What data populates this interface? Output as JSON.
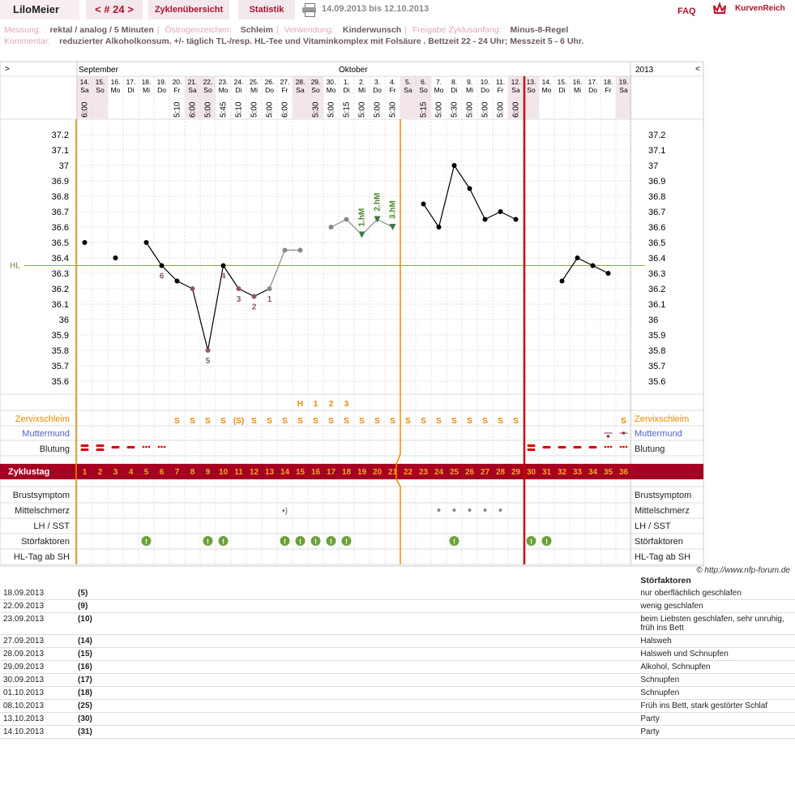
{
  "header": {
    "user": "LiloMeier",
    "cycle_nav": "< # 24 >",
    "tab_overview": "Zyklenübersicht",
    "tab_stats": "Statistik",
    "date_range": "14.09.2013 bis 12.10.2013",
    "faq": "FAQ",
    "brand": "KurvenReich"
  },
  "info": {
    "messung_label": "Messung:",
    "messung": "rektal / analog / 5 Minuten",
    "oestrogen_label": "Östrogenzeichen:",
    "oestrogen": "Schleim",
    "verwendung_label": "Verwendung:",
    "verwendung": "Kinderwunsch",
    "freigabe_label": "Freigabe Zyklusanfang:",
    "freigabe": "Minus-8-Regel",
    "kommentar_label": "Kommentar:",
    "kommentar": "reduzierter Alkoholkonsum. +/- täglich TL-/resp. HL-Tee und Vitaminkomplex mit Folsäure . Bettzeit 22 - 24 Uhr; Messzeit 5 - 6 Uhr."
  },
  "chart_data": {
    "type": "line",
    "year": "2013",
    "nav_left": ">",
    "nav_right": "<",
    "months": [
      "September",
      "Oktober"
    ],
    "dates": [
      "14.",
      "15.",
      "16.",
      "17.",
      "18.",
      "19.",
      "20.",
      "21.",
      "22.",
      "23.",
      "24.",
      "25.",
      "26.",
      "27.",
      "28.",
      "29.",
      "30.",
      "1.",
      "2.",
      "3.",
      "4.",
      "5.",
      "6.",
      "7.",
      "8.",
      "9.",
      "10.",
      "11.",
      "12.",
      "13.",
      "14.",
      "15.",
      "16.",
      "17.",
      "18.",
      "19."
    ],
    "weekdays": [
      "Sa",
      "So",
      "Mo",
      "Di",
      "Mi",
      "Do",
      "Fr",
      "Sa",
      "So",
      "Mo",
      "Di",
      "Mi",
      "Do",
      "Fr",
      "Sa",
      "So",
      "Mo",
      "Di",
      "Mi",
      "Do",
      "Fr",
      "Sa",
      "So",
      "Mo",
      "Di",
      "Mi",
      "Do",
      "Fr",
      "Sa",
      "So",
      "Mo",
      "Di",
      "Mi",
      "Do",
      "Fr",
      "Sa"
    ],
    "times": [
      "6:00",
      "",
      "",
      "",
      "",
      "",
      "5:10",
      "6:00",
      "5:00",
      "5:45",
      "5:10",
      "5:00",
      "5:00",
      "6:00",
      "",
      "5:30",
      "5:00",
      "5:15",
      "5:00",
      "5:00",
      "5:30",
      "",
      "5:15",
      "5:00",
      "5:30",
      "5:00",
      "5:00",
      "5:00",
      "6:00",
      "",
      "",
      "",
      "",
      "",
      "",
      ""
    ],
    "cycle_days": [
      "1",
      "2",
      "3",
      "4",
      "5",
      "6",
      "7",
      "8",
      "9",
      "10",
      "11",
      "12",
      "13",
      "14",
      "15",
      "16",
      "17",
      "18",
      "19",
      "20",
      "21",
      "22",
      "23",
      "24",
      "25",
      "26",
      "27",
      "28",
      "29",
      "30",
      "31",
      "32",
      "33",
      "34",
      "35",
      "36"
    ],
    "y_ticks": [
      "37.2",
      "37.1",
      "37",
      "36.9",
      "36.8",
      "36.7",
      "36.6",
      "36.5",
      "36.4",
      "36.3",
      "36.2",
      "36.1",
      "36",
      "35.9",
      "35.8",
      "35.7",
      "35.6"
    ],
    "ylim": [
      35.6,
      37.2
    ],
    "hl_label": "HL",
    "hl_value": 36.35,
    "series": [
      {
        "values": [
          36.5,
          null,
          36.4,
          null,
          36.5,
          36.35,
          36.25,
          36.2,
          35.8,
          36.35,
          36.2,
          36.15,
          36.2,
          36.45,
          36.45,
          null,
          36.6,
          36.65,
          36.55,
          36.65,
          36.6,
          null,
          36.75,
          36.6,
          37.0,
          36.85,
          36.65,
          36.7,
          36.65,
          null,
          null,
          36.25,
          36.4,
          36.35,
          36.3,
          null
        ]
      }
    ],
    "point_numbers": [
      {
        "day": "6",
        "label": "6"
      },
      {
        "day": "9",
        "label": "5"
      },
      {
        "day": "10",
        "label": "4"
      },
      {
        "day": "11",
        "label": "3"
      },
      {
        "day": "12",
        "label": "2"
      },
      {
        "day": "13",
        "label": "1"
      }
    ],
    "hm_labels": [
      {
        "day": "19",
        "label": "1.hM"
      },
      {
        "day": "20",
        "label": "2.hM"
      },
      {
        "day": "21",
        "label": "3.hM"
      }
    ],
    "cervix_marks": [
      "",
      "",
      "",
      "",
      "",
      "",
      "S",
      "S",
      "S",
      "S",
      "(S)",
      "S",
      "S",
      "S",
      "S",
      "S",
      "S",
      "S",
      "S",
      "S",
      "S",
      "S",
      "S",
      "S",
      "S",
      "S",
      "S",
      "S",
      "S",
      "",
      "",
      "",
      "",
      "",
      "",
      "S"
    ],
    "cervix_peak": [
      "",
      "",
      "",
      "",
      "",
      "",
      "",
      "",
      "",
      "",
      "",
      "",
      "",
      "",
      "H",
      "1",
      "2",
      "3",
      "",
      "",
      "",
      "",
      "",
      "",
      "",
      "",
      "",
      "",
      "",
      "",
      "",
      "",
      "",
      "",
      "",
      ""
    ],
    "row_labels": {
      "zervix": "Zervixschleim",
      "muttermund": "Muttermund",
      "blutung": "Blutung",
      "zyklustag": "Zyklustag",
      "brust": "Brustsymptom",
      "mittel": "Mittelschmerz",
      "lh": "LH / SST",
      "stoer": "Störfaktoren",
      "hltag": "HL-Tag ab SH"
    },
    "colors": {
      "accent": "#a50021",
      "ovulation_line": "#f08a00",
      "cycle_start_line": "#d00000",
      "line": "#000000",
      "pre_line": "#888888",
      "hl_line": "#88aa44",
      "stoer_icon": "#6aa13a",
      "cervix": "#e58a00"
    }
  },
  "copyright": "© http://www.nfp-forum.de",
  "notes": {
    "header": "Störfaktoren",
    "rows": [
      {
        "date": "18.09.2013",
        "day": "(5)",
        "text": "nur oberflächlich geschlafen"
      },
      {
        "date": "22.09.2013",
        "day": "(9)",
        "text": "wenig geschlafen"
      },
      {
        "date": "23.09.2013",
        "day": "(10)",
        "text": "beim Liebsten geschlafen, sehr unruhig, früh ins Bett"
      },
      {
        "date": "27.09.2013",
        "day": "(14)",
        "text": "Halsweh"
      },
      {
        "date": "28.09.2013",
        "day": "(15)",
        "text": "Halsweh und Schnupfen"
      },
      {
        "date": "29.09.2013",
        "day": "(16)",
        "text": "Alkohol, Schnupfen"
      },
      {
        "date": "30.09.2013",
        "day": "(17)",
        "text": "Schnupfen"
      },
      {
        "date": "01.10.2013",
        "day": "(18)",
        "text": "Schnupfen"
      },
      {
        "date": "08.10.2013",
        "day": "(25)",
        "text": "Früh ins Bett, stark gestörter Schlaf"
      },
      {
        "date": "13.10.2013",
        "day": "(30)",
        "text": "Party"
      },
      {
        "date": "14.10.2013",
        "day": "(31)",
        "text": "Party"
      }
    ]
  }
}
